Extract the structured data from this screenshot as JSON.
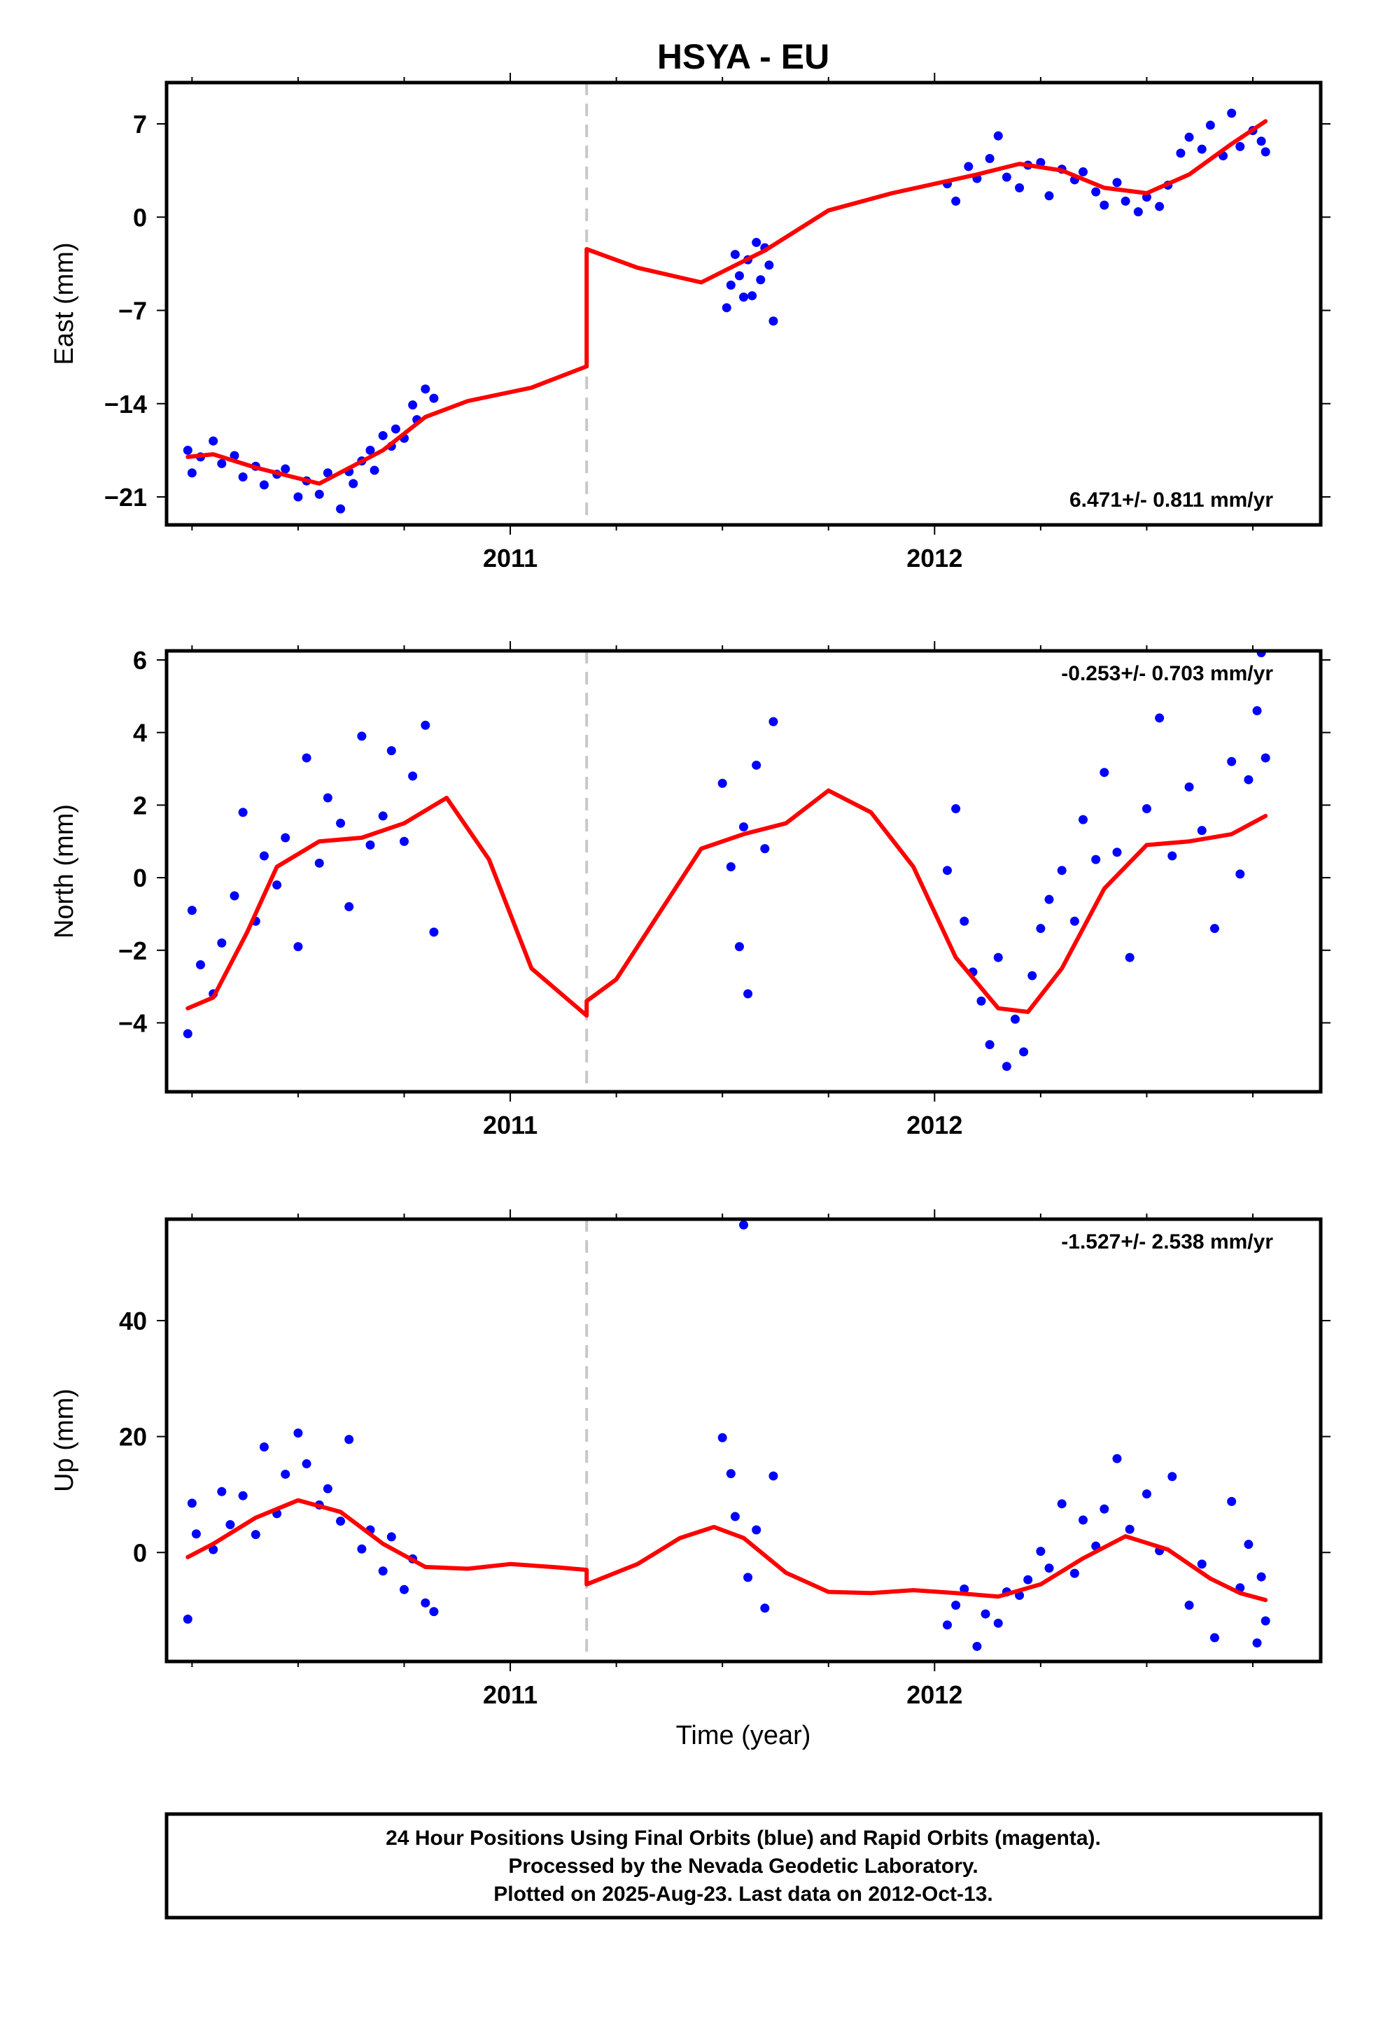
{
  "title": "HSYA - EU",
  "colors": {
    "points": "#0000ff",
    "model": "#ff0000",
    "break_line": "#c8c8c8",
    "frame": "#000000"
  },
  "x_axis_title": "Time (year)",
  "footer": {
    "line1": "24 Hour Positions Using Final Orbits (blue) and Rapid Orbits (magenta).",
    "line2": "Processed by the Nevada Geodetic Laboratory.",
    "line3": "Plotted on 2025-Aug-23. Last data on 2012-Oct-13."
  },
  "chart_data": [
    {
      "type": "scatter",
      "ylabel": "East (mm)",
      "rate_label": "6.471+/- 0.811 mm/yr",
      "rate_position": "bottom-right",
      "xlim": [
        2010.19,
        2012.91
      ],
      "ylim": [
        -23.1,
        10.1
      ],
      "xticks": [
        2011,
        2012
      ],
      "yticks": [
        -21,
        -14,
        -7,
        0,
        7
      ],
      "ytick_labels": [
        "−21",
        "−14",
        "−7",
        "0",
        "7"
      ],
      "break_epoch": 2011.18,
      "model": {
        "x": [
          2010.24,
          2010.3,
          2010.4,
          2010.55,
          2010.7,
          2010.8,
          2010.9,
          2011.05,
          2011.18,
          2011.18,
          2011.3,
          2011.45,
          2011.6,
          2011.75,
          2011.9,
          2012.0,
          2012.1,
          2012.2,
          2012.3,
          2012.4,
          2012.5,
          2012.6,
          2012.7,
          2012.78
        ],
        "y": [
          -18.0,
          -17.8,
          -18.8,
          -20.0,
          -17.5,
          -15.0,
          -13.8,
          -12.8,
          -11.2,
          -2.4,
          -3.8,
          -4.9,
          -2.5,
          0.5,
          1.8,
          2.5,
          3.2,
          4.0,
          3.5,
          2.2,
          1.8,
          3.2,
          5.5,
          7.2
        ]
      },
      "points": {
        "x": [
          2010.24,
          2010.25,
          2010.27,
          2010.3,
          2010.32,
          2010.35,
          2010.37,
          2010.4,
          2010.42,
          2010.45,
          2010.47,
          2010.5,
          2010.52,
          2010.55,
          2010.57,
          2010.6,
          2010.62,
          2010.63,
          2010.65,
          2010.67,
          2010.68,
          2010.7,
          2010.72,
          2010.73,
          2010.75,
          2010.77,
          2010.78,
          2010.8,
          2010.82,
          2011.51,
          2011.52,
          2011.53,
          2011.54,
          2011.55,
          2011.56,
          2011.57,
          2011.58,
          2011.59,
          2011.6,
          2011.61,
          2011.62,
          2012.03,
          2012.05,
          2012.08,
          2012.1,
          2012.13,
          2012.15,
          2012.17,
          2012.2,
          2012.22,
          2012.25,
          2012.27,
          2012.3,
          2012.33,
          2012.35,
          2012.38,
          2012.4,
          2012.43,
          2012.45,
          2012.48,
          2012.5,
          2012.53,
          2012.55,
          2012.58,
          2012.6,
          2012.63,
          2012.65,
          2012.68,
          2012.7,
          2012.72,
          2012.75,
          2012.77,
          2012.78
        ],
        "y": [
          -17.5,
          -19.2,
          -18.0,
          -16.8,
          -18.5,
          -17.9,
          -19.5,
          -18.7,
          -20.1,
          -19.3,
          -18.9,
          -21.0,
          -19.8,
          -20.8,
          -19.2,
          -21.9,
          -19.1,
          -20.0,
          -18.3,
          -17.5,
          -19.0,
          -16.4,
          -17.2,
          -15.9,
          -16.6,
          -14.1,
          -15.2,
          -12.9,
          -13.6,
          -6.8,
          -5.1,
          -2.8,
          -4.4,
          -6.0,
          -3.2,
          -5.9,
          -1.9,
          -4.7,
          -2.3,
          -3.6,
          -7.8,
          2.5,
          1.2,
          3.8,
          2.9,
          4.4,
          6.1,
          3.0,
          2.2,
          3.9,
          4.1,
          1.6,
          3.6,
          2.8,
          3.4,
          1.9,
          0.9,
          2.6,
          1.2,
          0.4,
          1.5,
          0.8,
          2.4,
          4.8,
          6.0,
          5.1,
          6.9,
          4.6,
          7.8,
          5.3,
          6.5,
          5.7,
          4.9
        ]
      }
    },
    {
      "type": "scatter",
      "ylabel": "North (mm)",
      "rate_label": "-0.253+/- 0.703 mm/yr",
      "rate_position": "top-right",
      "xlim": [
        2010.19,
        2012.91
      ],
      "ylim": [
        -5.9,
        6.25
      ],
      "xticks": [
        2011,
        2012
      ],
      "yticks": [
        -4,
        -2,
        0,
        2,
        4,
        6
      ],
      "ytick_labels": [
        "−4",
        "−2",
        "0",
        "2",
        "4",
        "6"
      ],
      "break_epoch": 2011.18,
      "model": {
        "x": [
          2010.24,
          2010.3,
          2010.38,
          2010.45,
          2010.55,
          2010.65,
          2010.75,
          2010.85,
          2010.95,
          2011.05,
          2011.18,
          2011.18,
          2011.25,
          2011.35,
          2011.45,
          2011.55,
          2011.65,
          2011.75,
          2011.85,
          2011.95,
          2012.05,
          2012.15,
          2012.22,
          2012.3,
          2012.4,
          2012.5,
          2012.6,
          2012.7,
          2012.78
        ],
        "y": [
          -3.6,
          -3.3,
          -1.5,
          0.3,
          1.0,
          1.1,
          1.5,
          2.2,
          0.5,
          -2.5,
          -3.8,
          -3.4,
          -2.8,
          -1.0,
          0.8,
          1.2,
          1.5,
          2.4,
          1.8,
          0.3,
          -2.2,
          -3.6,
          -3.7,
          -2.5,
          -0.3,
          0.9,
          1.0,
          1.2,
          1.7
        ]
      },
      "points": {
        "x": [
          2010.24,
          2010.25,
          2010.27,
          2010.3,
          2010.32,
          2010.35,
          2010.37,
          2010.4,
          2010.42,
          2010.45,
          2010.47,
          2010.5,
          2010.52,
          2010.55,
          2010.57,
          2010.6,
          2010.62,
          2010.65,
          2010.67,
          2010.7,
          2010.72,
          2010.75,
          2010.77,
          2010.8,
          2010.82,
          2011.5,
          2011.52,
          2011.54,
          2011.55,
          2011.56,
          2011.58,
          2011.6,
          2011.62,
          2012.03,
          2012.05,
          2012.07,
          2012.09,
          2012.11,
          2012.13,
          2012.15,
          2012.17,
          2012.19,
          2012.21,
          2012.23,
          2012.25,
          2012.27,
          2012.3,
          2012.33,
          2012.35,
          2012.38,
          2012.4,
          2012.43,
          2012.46,
          2012.5,
          2012.53,
          2012.56,
          2012.6,
          2012.63,
          2012.66,
          2012.7,
          2012.72,
          2012.74,
          2012.76,
          2012.77,
          2012.78
        ],
        "y": [
          -4.3,
          -0.9,
          -2.4,
          -3.2,
          -1.8,
          -0.5,
          1.8,
          -1.2,
          0.6,
          -0.2,
          1.1,
          -1.9,
          3.3,
          0.4,
          2.2,
          1.5,
          -0.8,
          3.9,
          0.9,
          1.7,
          3.5,
          1.0,
          2.8,
          4.2,
          -1.5,
          2.6,
          0.3,
          -1.9,
          1.4,
          -3.2,
          3.1,
          0.8,
          4.3,
          0.2,
          1.9,
          -1.2,
          -2.6,
          -3.4,
          -4.6,
          -2.2,
          -5.2,
          -3.9,
          -4.8,
          -2.7,
          -1.4,
          -0.6,
          0.2,
          -1.2,
          1.6,
          0.5,
          2.9,
          0.7,
          -2.2,
          1.9,
          4.4,
          0.6,
          2.5,
          1.3,
          -1.4,
          3.2,
          0.1,
          2.7,
          4.6,
          6.2,
          3.3
        ]
      }
    },
    {
      "type": "scatter",
      "ylabel": "Up (mm)",
      "rate_label": "-1.527+/- 2.538 mm/yr",
      "rate_position": "top-right",
      "xlim": [
        2010.19,
        2012.91
      ],
      "ylim": [
        -18.8,
        57.5
      ],
      "xticks": [
        2011,
        2012
      ],
      "yticks": [
        0,
        20,
        40
      ],
      "ytick_labels": [
        "0",
        "20",
        "40"
      ],
      "break_epoch": 2011.18,
      "model": {
        "x": [
          2010.24,
          2010.3,
          2010.4,
          2010.5,
          2010.6,
          2010.7,
          2010.8,
          2010.9,
          2011.0,
          2011.1,
          2011.18,
          2011.18,
          2011.3,
          2011.4,
          2011.48,
          2011.55,
          2011.65,
          2011.75,
          2011.85,
          2011.95,
          2012.05,
          2012.15,
          2012.25,
          2012.35,
          2012.45,
          2012.55,
          2012.65,
          2012.72,
          2012.78
        ],
        "y": [
          -0.8,
          1.5,
          6.0,
          9.0,
          7.0,
          1.5,
          -2.5,
          -2.8,
          -2.0,
          -2.5,
          -3.0,
          -5.5,
          -2.0,
          2.5,
          4.4,
          2.5,
          -3.5,
          -6.8,
          -7.0,
          -6.5,
          -7.0,
          -7.6,
          -5.5,
          -1.0,
          2.8,
          0.5,
          -4.5,
          -7.0,
          -8.2
        ]
      },
      "points": {
        "x": [
          2010.24,
          2010.25,
          2010.26,
          2010.3,
          2010.32,
          2010.34,
          2010.37,
          2010.4,
          2010.42,
          2010.45,
          2010.47,
          2010.5,
          2010.52,
          2010.55,
          2010.57,
          2010.6,
          2010.62,
          2010.65,
          2010.67,
          2010.7,
          2010.72,
          2010.75,
          2010.77,
          2010.8,
          2010.82,
          2011.5,
          2011.52,
          2011.53,
          2011.55,
          2011.56,
          2011.58,
          2011.6,
          2011.62,
          2012.03,
          2012.05,
          2012.07,
          2012.1,
          2012.12,
          2012.15,
          2012.17,
          2012.2,
          2012.22,
          2012.25,
          2012.27,
          2012.3,
          2012.33,
          2012.35,
          2012.38,
          2012.4,
          2012.43,
          2012.46,
          2012.5,
          2012.53,
          2012.56,
          2012.6,
          2012.63,
          2012.66,
          2012.7,
          2012.72,
          2012.74,
          2012.76,
          2012.77,
          2012.78
        ],
        "y": [
          -11.5,
          8.5,
          3.2,
          0.5,
          10.5,
          4.8,
          9.8,
          3.1,
          18.2,
          6.7,
          13.5,
          20.6,
          15.3,
          8.2,
          11.0,
          5.4,
          19.5,
          0.6,
          3.9,
          -3.2,
          2.7,
          -6.4,
          -1.1,
          -8.7,
          -10.2,
          19.8,
          13.6,
          6.2,
          56.5,
          -4.3,
          3.9,
          -9.6,
          13.2,
          -12.5,
          -9.1,
          -6.3,
          -16.2,
          -10.6,
          -12.2,
          -6.8,
          -7.4,
          -4.7,
          0.2,
          -2.7,
          8.4,
          -3.6,
          5.6,
          1.1,
          7.5,
          16.2,
          4.0,
          10.1,
          0.3,
          13.1,
          -9.1,
          -2.0,
          -14.7,
          8.8,
          -6.1,
          1.4,
          -15.6,
          -4.2,
          -11.8
        ]
      }
    }
  ]
}
